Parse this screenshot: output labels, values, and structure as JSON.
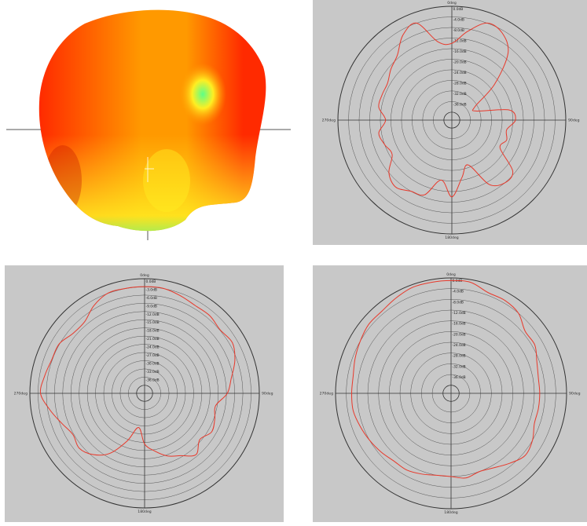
{
  "chart_data": [
    {
      "type": "surface",
      "colors": {
        "high": "#ff2a00",
        "mid": "#ff9900",
        "low": "#ffee22",
        "min": "#5cff88"
      }
    },
    {
      "type": "polar",
      "rlim": [
        -40,
        0
      ],
      "r_ticks": [
        "0.0dB",
        "-4.0dB",
        "-8.0dB",
        "-12.0dB",
        "-16.0dB",
        "-20.0dB",
        "-24.0dB",
        "-28.0dB",
        "-32.0dB",
        "-36.0dB"
      ],
      "angle_labels": [
        "0deg",
        "90deg",
        "180deg",
        "270deg"
      ],
      "line_color": "#e8392b",
      "theta": [
        0,
        10,
        20,
        30,
        40,
        50,
        60,
        70,
        80,
        90,
        100,
        110,
        120,
        130,
        140,
        150,
        160,
        170,
        180,
        190,
        200,
        210,
        220,
        230,
        240,
        250,
        260,
        270,
        280,
        290,
        300,
        310,
        320,
        330,
        340,
        350
      ],
      "r": [
        -14,
        -9,
        -4,
        -5,
        -10,
        -22,
        -33,
        -33,
        -21,
        -19,
        -22,
        -21,
        -22,
        -13,
        -12,
        -15,
        -25,
        -21,
        -14,
        -20,
        -13,
        -12,
        -10,
        -12,
        -17,
        -16,
        -15,
        -18,
        -15,
        -15,
        -15,
        -13,
        -11,
        -6,
        -4,
        -13
      ]
    },
    {
      "type": "polar",
      "rlim": [
        -40,
        0
      ],
      "r_ticks": [
        "0.0dB",
        "-3.0dB",
        "-6.0dB",
        "-9.0dB",
        "-12.0dB",
        "-15.0dB",
        "-18.0dB",
        "-21.0dB",
        "-24.0dB",
        "-27.0dB",
        "-30.0dB",
        "-33.0dB",
        "-36.0dB"
      ],
      "angle_labels": [
        "0deg",
        "90deg",
        "180deg",
        "270deg"
      ],
      "line_color": "#e8392b",
      "theta": [
        0,
        10,
        20,
        30,
        40,
        50,
        60,
        70,
        80,
        90,
        100,
        110,
        120,
        130,
        140,
        150,
        160,
        170,
        180,
        190,
        200,
        210,
        220,
        230,
        240,
        250,
        260,
        270,
        280,
        290,
        300,
        310,
        320,
        330,
        340,
        350
      ],
      "r": [
        -3,
        -3,
        -4,
        -5,
        -5,
        -6,
        -5,
        -7,
        -10,
        -12,
        -16,
        -15,
        -14,
        -16,
        -13,
        -16,
        -18,
        -21,
        -24,
        -30,
        -24,
        -17,
        -13,
        -11,
        -12,
        -10,
        -7,
        -4,
        -5,
        -6,
        -6,
        -8,
        -8,
        -5,
        -3,
        -3
      ]
    },
    {
      "type": "polar",
      "rlim": [
        -40,
        0
      ],
      "r_ticks": [
        "0.0dB",
        "-4.0dB",
        "-8.0dB",
        "-12.0dB",
        "-16.0dB",
        "-20.0dB",
        "-24.0dB",
        "-28.0dB",
        "-32.0dB",
        "-36.0dB"
      ],
      "angle_labels": [
        "0deg",
        "90deg",
        "180deg",
        "270deg"
      ],
      "line_color": "#e8392b",
      "theta": [
        0,
        10,
        20,
        30,
        40,
        50,
        60,
        70,
        80,
        90,
        100,
        110,
        120,
        130,
        140,
        150,
        160,
        170,
        180,
        190,
        200,
        210,
        220,
        230,
        240,
        250,
        260,
        270,
        280,
        290,
        300,
        310,
        320,
        330,
        340,
        350
      ],
      "r": [
        -1,
        -1,
        -3,
        -3,
        -4,
        -7,
        -7,
        -9,
        -10,
        -10,
        -10,
        -10,
        -8,
        -7,
        -9,
        -11,
        -12,
        -11,
        -12,
        -12,
        -11,
        -10,
        -10,
        -9,
        -8,
        -7,
        -6,
        -6,
        -6,
        -5,
        -4,
        -3,
        -3,
        -2,
        -1,
        -1
      ]
    }
  ]
}
